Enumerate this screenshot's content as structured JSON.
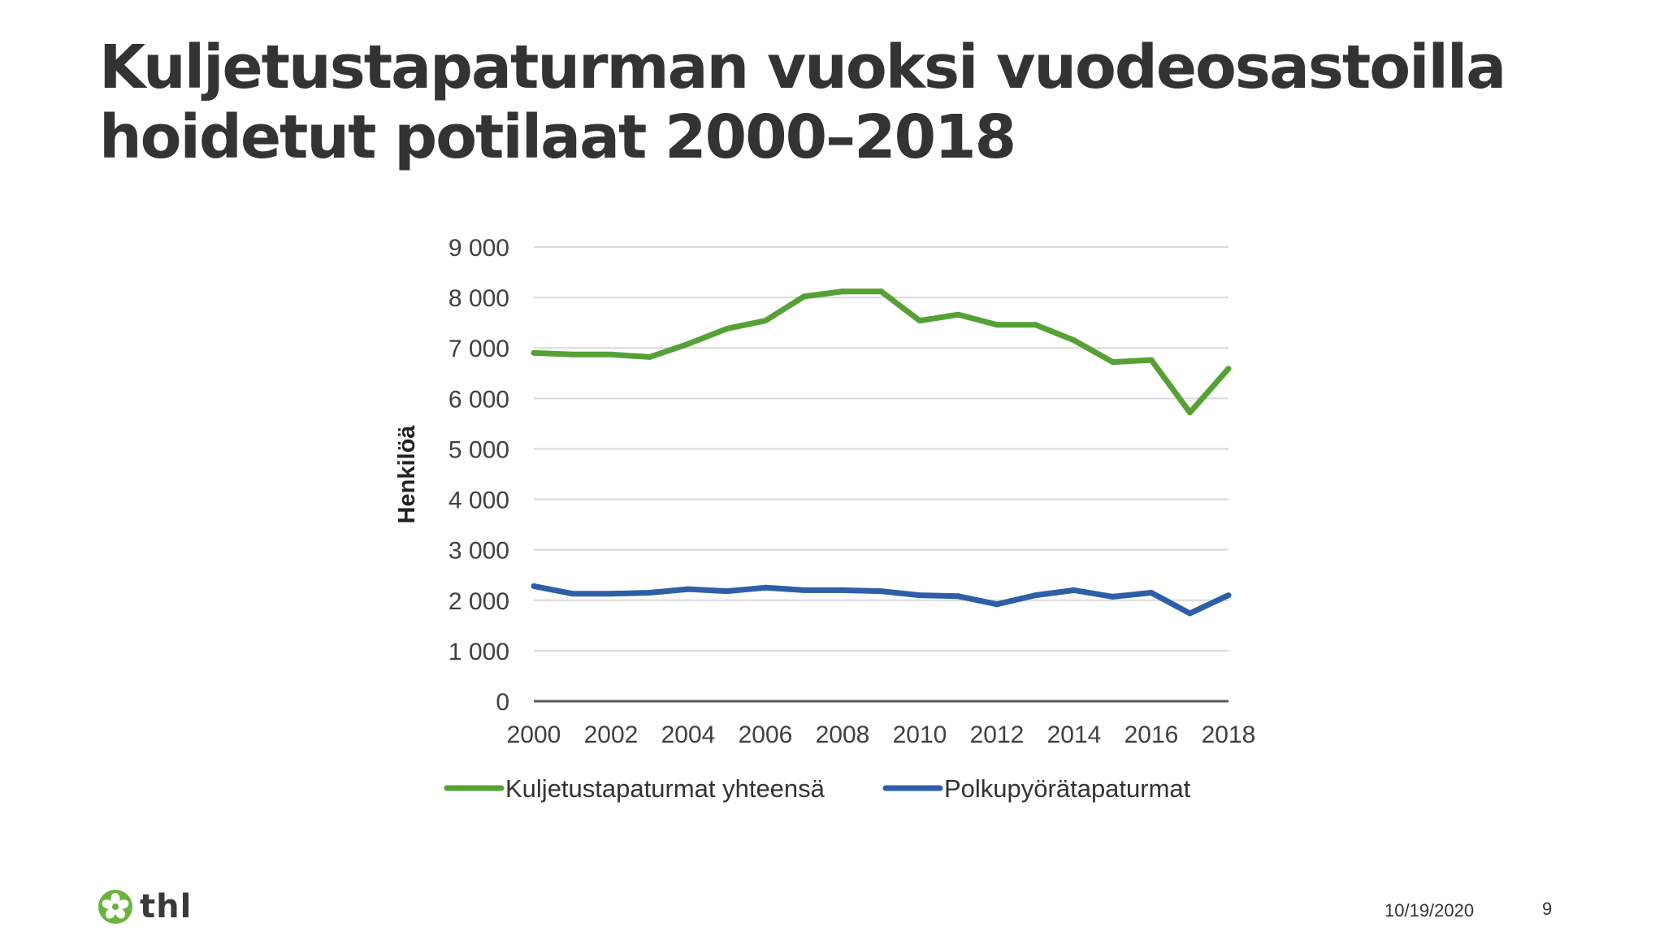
{
  "slide": {
    "title_line1": "Kuljetustapaturman vuoksi vuodeosastoilla",
    "title_line2": "hoidetut potilaat 2000–2018",
    "logo_text": "thl",
    "date": "10/19/2020",
    "page_number": "9"
  },
  "colors": {
    "series_total": "#55a135",
    "series_bicycle": "#2e5ea8",
    "grid": "#d9d9d9",
    "axis": "#595959",
    "logo_green": "#6ab33e"
  },
  "chart_data": {
    "type": "line",
    "title": "",
    "xlabel": "",
    "ylabel": "Henkilöä",
    "x": [
      2000,
      2001,
      2002,
      2003,
      2004,
      2005,
      2006,
      2007,
      2008,
      2009,
      2010,
      2011,
      2012,
      2013,
      2014,
      2015,
      2016,
      2017,
      2018
    ],
    "x_tick_labels": [
      "2000",
      "2002",
      "2004",
      "2006",
      "2008",
      "2010",
      "2012",
      "2014",
      "2016",
      "2018"
    ],
    "y_tick_labels": [
      "0",
      "1 000",
      "2 000",
      "3 000",
      "4 000",
      "5 000",
      "6 000",
      "7 000",
      "8 000",
      "9 000"
    ],
    "ylim": [
      0,
      9000
    ],
    "grid": true,
    "legend_position": "bottom",
    "series": [
      {
        "name": "Kuljetustapaturmat yhteensä",
        "color": "#55a135",
        "values": [
          6900,
          6870,
          6870,
          6820,
          7080,
          7380,
          7540,
          8020,
          8120,
          8120,
          7540,
          7660,
          7460,
          7460,
          7150,
          6720,
          6760,
          5720,
          6590
        ]
      },
      {
        "name": "Polkupyörätapaturmat",
        "color": "#2e5ea8",
        "values": [
          2280,
          2130,
          2130,
          2150,
          2220,
          2180,
          2250,
          2200,
          2200,
          2180,
          2100,
          2080,
          1920,
          2100,
          2200,
          2070,
          2150,
          1740,
          2100
        ]
      }
    ]
  }
}
